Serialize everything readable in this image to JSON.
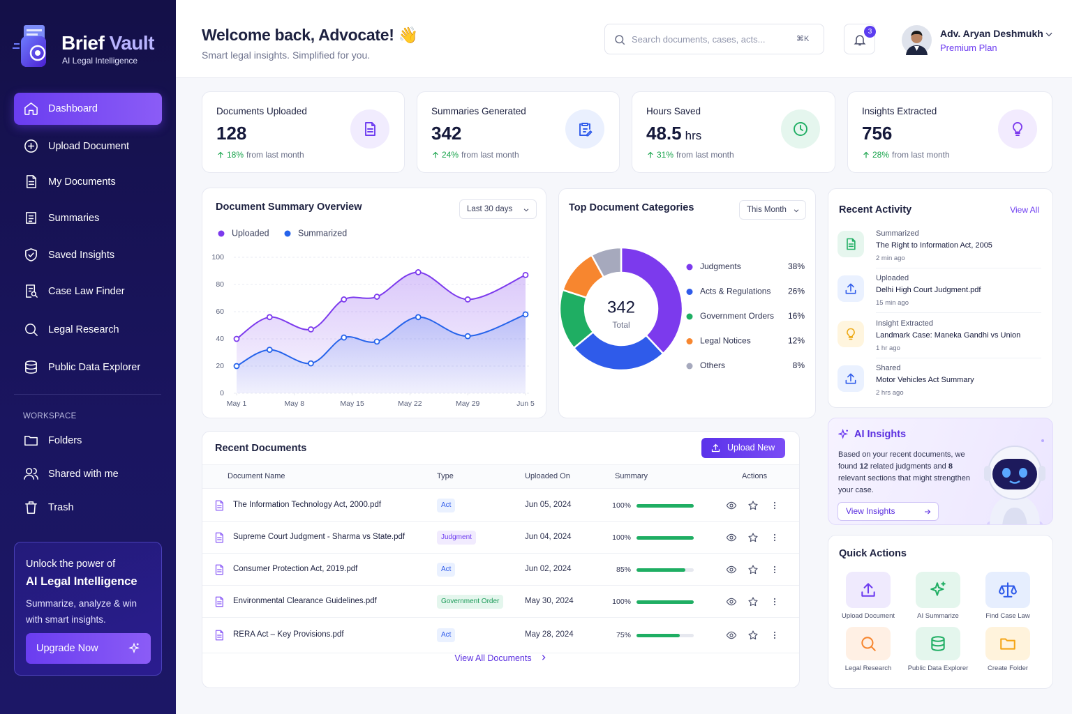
{
  "sidebar": {
    "brand_first": "Brief",
    "brand_second": "Vault",
    "tagline": "AI Legal Intelligence",
    "nav": [
      "Dashboard",
      "Upload Document",
      "My Documents",
      "Summaries",
      "Saved Insights",
      "Case Law Finder",
      "Legal Research",
      "Public Data Explorer"
    ],
    "workspace_label": "WORKSPACE",
    "workspace": [
      "Folders",
      "Shared with me",
      "Trash"
    ],
    "promo": {
      "line1": "Unlock the power of",
      "line2": "AI Legal Intelligence",
      "text": "Summarize, analyze & win with smart insights.",
      "button": "Upgrade Now"
    }
  },
  "header": {
    "title": "Welcome back, Advocate!",
    "emoji": "👋",
    "subtitle": "Smart legal insights. Simplified for you.",
    "search_placeholder": "Search documents, cases, acts...",
    "shortcut": "⌘K",
    "notifications": 3,
    "user_name": "Adv. Aryan Deshmukh",
    "plan": "Premium Plan"
  },
  "stats": [
    {
      "label": "Documents Uploaded",
      "value": 128,
      "change": "18%",
      "change_text": "from last month"
    },
    {
      "label": "Summaries Generated",
      "value": 342,
      "change": "24%",
      "change_text": "from last month"
    },
    {
      "label": "Hours Saved",
      "value": 48.5,
      "unit": "hrs",
      "change": "31%",
      "change_text": "from last month"
    },
    {
      "label": "Insights Extracted",
      "value": 756,
      "change": "28%",
      "change_text": "from last month"
    }
  ],
  "chart_data": [
    {
      "type": "line",
      "title": "Document Summary Overview",
      "range": "Last 30 days",
      "x": [
        0,
        4,
        9,
        13,
        17,
        22,
        28,
        35
      ],
      "xlim": [
        0,
        35
      ],
      "xticks": [
        {
          "value": 0,
          "label": "May 1"
        },
        {
          "value": 7,
          "label": "May 8"
        },
        {
          "value": 14,
          "label": "May 15"
        },
        {
          "value": 21,
          "label": "May 22"
        },
        {
          "value": 28,
          "label": "May 29"
        },
        {
          "value": 35,
          "label": "Jun 5"
        }
      ],
      "ylim": [
        0,
        100
      ],
      "yticks": [
        0,
        20,
        40,
        60,
        80,
        100
      ],
      "grid": true,
      "legend": "top-left",
      "series": [
        {
          "name": "Uploaded",
          "color": "#7c3aed",
          "values": [
            40,
            56,
            47,
            69,
            71,
            89,
            69,
            87
          ]
        },
        {
          "name": "Summarized",
          "color": "#2563eb",
          "values": [
            20,
            32,
            22,
            41,
            38,
            56,
            42,
            58
          ]
        }
      ]
    },
    {
      "type": "donut",
      "title": "Top Document Categories",
      "range": "This Month",
      "total": 342,
      "total_label": "Total",
      "categories": [
        "Judgments",
        "Acts & Regulations",
        "Government Orders",
        "Legal Notices",
        "Others"
      ],
      "values": [
        38,
        26,
        16,
        12,
        8
      ],
      "value_labels": [
        "38%",
        "26%",
        "16%",
        "12%",
        "8%"
      ],
      "colors": [
        "#7c3aed",
        "#2f5bea",
        "#1fae63",
        "#f7862f",
        "#a6a9bd"
      ]
    }
  ],
  "recent_activity": {
    "title": "Recent Activity",
    "view_all": "View All",
    "items": [
      {
        "action": "Summarized",
        "title": "The Right to Information Act, 2005",
        "time": "2 min ago"
      },
      {
        "action": "Uploaded",
        "title": "Delhi High Court Judgment.pdf",
        "time": "15 min ago"
      },
      {
        "action": "Insight Extracted",
        "title": "Landmark Case: Maneka Gandhi vs Union",
        "time": "1 hr ago"
      },
      {
        "action": "Shared",
        "title": "Motor Vehicles Act Summary",
        "time": "2 hrs ago"
      }
    ]
  },
  "ai_insights": {
    "title": "AI Insights",
    "text_before": "Based on your recent documents, we found ",
    "count_judgments": 12,
    "text_middle": " related judgments and ",
    "count_sections": 8,
    "text_after": " relevant sections that might strengthen your case.",
    "button": "View Insights"
  },
  "quick_actions": {
    "title": "Quick Actions",
    "items": [
      "Upload Document",
      "AI Summarize",
      "Find Case Law",
      "Legal Research",
      "Public Data Explorer",
      "Create Folder"
    ]
  },
  "recent_documents": {
    "title": "Recent Documents",
    "button": "Upload New",
    "columns": [
      "Document Name",
      "Type",
      "Uploaded On",
      "Summary",
      "Actions"
    ],
    "rows": [
      {
        "name": "The Information Technology Act, 2000.pdf",
        "type": "Act",
        "date": "Jun 05, 2024",
        "summary": 100,
        "summary_label": "100%"
      },
      {
        "name": "Supreme Court Judgment - Sharma vs State.pdf",
        "type": "Judgment",
        "date": "Jun 04, 2024",
        "summary": 100,
        "summary_label": "100%"
      },
      {
        "name": "Consumer Protection Act, 2019.pdf",
        "type": "Act",
        "date": "Jun 02, 2024",
        "summary": 85,
        "summary_label": "85%"
      },
      {
        "name": "Environmental Clearance Guidelines.pdf",
        "type": "Government Order",
        "date": "May 30, 2024",
        "summary": 100,
        "summary_label": "100%"
      },
      {
        "name": "RERA Act – Key Provisions.pdf",
        "type": "Act",
        "date": "May 28, 2024",
        "summary": 75,
        "summary_label": "75%"
      }
    ],
    "footer": "View All Documents"
  }
}
